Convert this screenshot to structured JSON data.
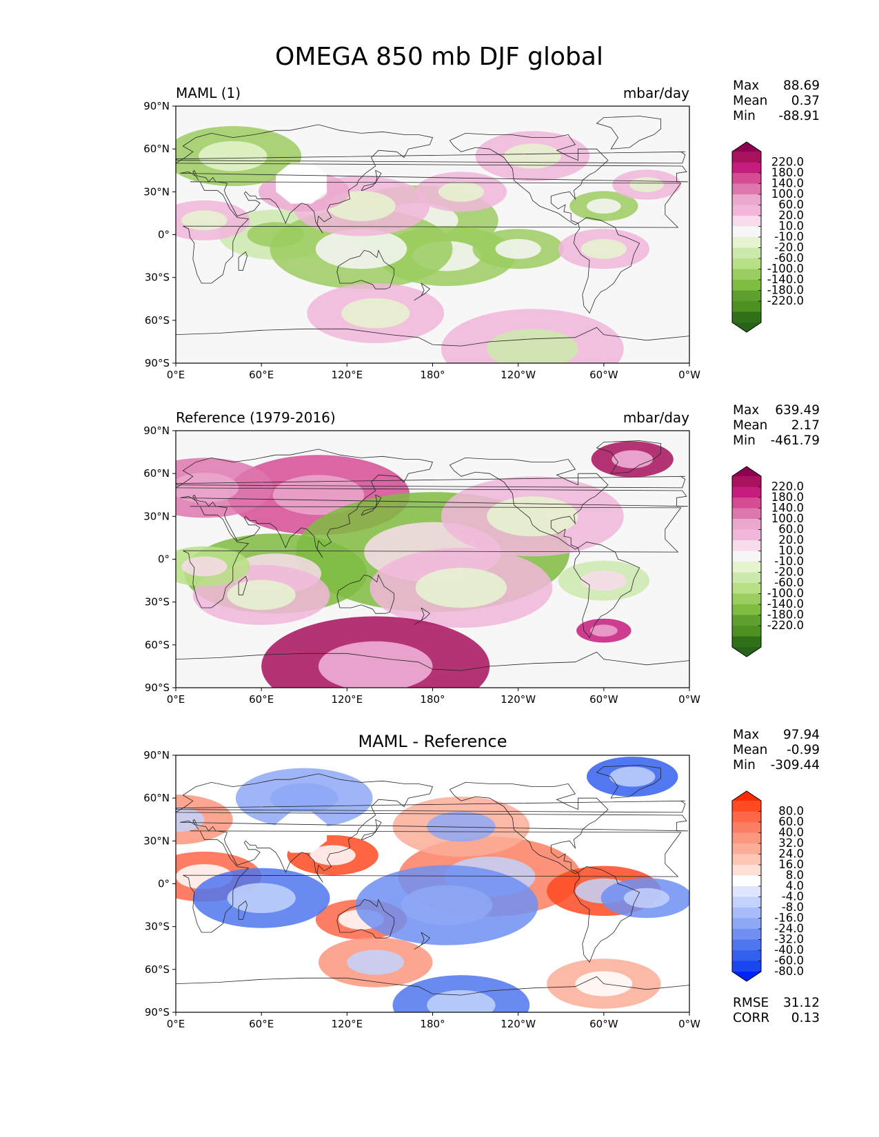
{
  "figure": {
    "title": "OMEGA 850 mb DJF global"
  },
  "axes": {
    "lat_ticks": [
      "90°N",
      "60°N",
      "30°N",
      "0°",
      "30°S",
      "60°S",
      "90°S"
    ],
    "lon_ticks": [
      "0°E",
      "60°E",
      "120°E",
      "180°",
      "120°W",
      "60°W",
      "0°W"
    ]
  },
  "panels": [
    {
      "id": "test",
      "left_label": "MAML (1)",
      "center_label": "",
      "right_label": "mbar/day",
      "stats": [
        {
          "label": "Max",
          "value": "88.69"
        },
        {
          "label": "Mean",
          "value": "0.37"
        },
        {
          "label": "Min",
          "value": "-88.91"
        }
      ],
      "extra_stats": [],
      "colorbar": {
        "labels": [
          "220.0",
          "180.0",
          "140.0",
          "100.0",
          "60.0",
          "20.0",
          "10.0",
          "-10.0",
          "-20.0",
          "-60.0",
          "-100.0",
          "-140.0",
          "-180.0",
          "-220.0"
        ],
        "colors": [
          "#8e0152",
          "#a8115e",
          "#c51b7d",
          "#d54c95",
          "#de77ae",
          "#eba8cf",
          "#f1b6da",
          "#f8dcec",
          "#f7f7f7",
          "#e6f5d0",
          "#cde9ad",
          "#b8e186",
          "#9bcc5f",
          "#7fbc41",
          "#5f9f2e",
          "#4d9221",
          "#2f7018",
          "#276419"
        ]
      }
    },
    {
      "id": "reference",
      "left_label": "Reference (1979-2016)",
      "center_label": "",
      "right_label": "mbar/day",
      "stats": [
        {
          "label": "Max",
          "value": "639.49"
        },
        {
          "label": "Mean",
          "value": "2.17"
        },
        {
          "label": "Min",
          "value": "-461.79"
        }
      ],
      "extra_stats": [],
      "colorbar": {
        "labels": [
          "220.0",
          "180.0",
          "140.0",
          "100.0",
          "60.0",
          "20.0",
          "10.0",
          "-10.0",
          "-20.0",
          "-60.0",
          "-100.0",
          "-140.0",
          "-180.0",
          "-220.0"
        ],
        "colors": [
          "#8e0152",
          "#a8115e",
          "#c51b7d",
          "#d54c95",
          "#de77ae",
          "#eba8cf",
          "#f1b6da",
          "#f8dcec",
          "#f7f7f7",
          "#e6f5d0",
          "#cde9ad",
          "#b8e186",
          "#9bcc5f",
          "#7fbc41",
          "#5f9f2e",
          "#4d9221",
          "#2f7018",
          "#276419"
        ]
      }
    },
    {
      "id": "difference",
      "left_label": "",
      "center_label": "MAML - Reference",
      "right_label": "",
      "stats": [
        {
          "label": "Max",
          "value": "97.94"
        },
        {
          "label": "Mean",
          "value": "-0.99"
        },
        {
          "label": "Min",
          "value": "-309.44"
        }
      ],
      "extra_stats": [
        {
          "label": "RMSE",
          "value": "31.12"
        },
        {
          "label": "CORR",
          "value": "0.13"
        }
      ],
      "colorbar": {
        "labels": [
          "80.0",
          "60.0",
          "40.0",
          "32.0",
          "24.0",
          "16.0",
          "8.0",
          "4.0",
          "-4.0",
          "-8.0",
          "-16.0",
          "-24.0",
          "-32.0",
          "-40.0",
          "-60.0",
          "-80.0"
        ],
        "colors": [
          "#ff2a00",
          "#ff4a22",
          "#ff6647",
          "#fb7f62",
          "#fb977f",
          "#fcad98",
          "#fdc6b5",
          "#fee0d6",
          "#ffffff",
          "#dde5ff",
          "#c3d2fc",
          "#a8bcf9",
          "#8ea8f6",
          "#6f8ff2",
          "#4f76ef",
          "#3360ee",
          "#1a46f0",
          "#0022ff"
        ]
      }
    }
  ],
  "colors": {
    "land_outline": "#222222",
    "frame": "#000000",
    "missing": "#ffffff"
  }
}
